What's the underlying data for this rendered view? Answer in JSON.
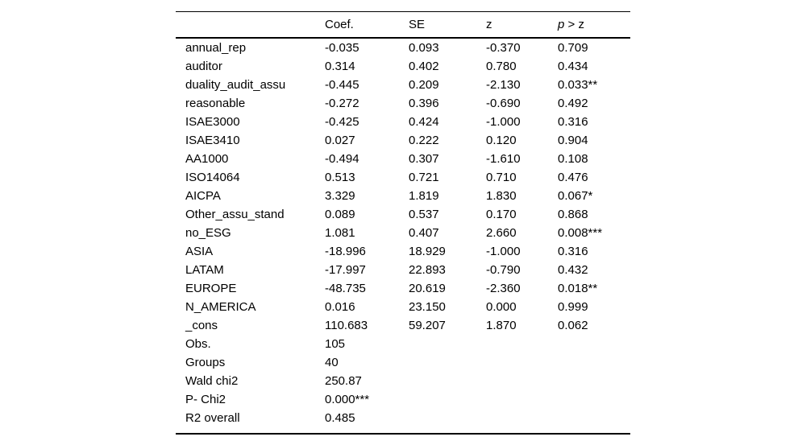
{
  "page": {
    "background_color": "#ffffff",
    "text_color": "#000000",
    "rule_color": "#000000"
  },
  "table": {
    "headers": {
      "variable": "",
      "coef": "Coef.",
      "se": "SE",
      "z": "z",
      "p_symbol": "p",
      "p_comparison": " > z"
    },
    "rows": [
      {
        "label": "annual_rep",
        "coef": "-0.035",
        "se": "0.093",
        "z": "-0.370",
        "p": "0.709"
      },
      {
        "label": "auditor",
        "coef": "0.314",
        "se": "0.402",
        "z": "0.780",
        "p": "0.434"
      },
      {
        "label": "duality_audit_assu",
        "coef": "-0.445",
        "se": "0.209",
        "z": "-2.130",
        "p": "0.033**"
      },
      {
        "label": "reasonable",
        "coef": "-0.272",
        "se": "0.396",
        "z": "-0.690",
        "p": "0.492"
      },
      {
        "label": "ISAE3000",
        "coef": "-0.425",
        "se": "0.424",
        "z": "-1.000",
        "p": "0.316"
      },
      {
        "label": "ISAE3410",
        "coef": "0.027",
        "se": "0.222",
        "z": "0.120",
        "p": "0.904"
      },
      {
        "label": "AA1000",
        "coef": "-0.494",
        "se": "0.307",
        "z": "-1.610",
        "p": "0.108"
      },
      {
        "label": "ISO14064",
        "coef": "0.513",
        "se": "0.721",
        "z": "0.710",
        "p": "0.476"
      },
      {
        "label": "AICPA",
        "coef": "3.329",
        "se": "1.819",
        "z": "1.830",
        "p": "0.067*"
      },
      {
        "label": "Other_assu_stand",
        "coef": "0.089",
        "se": "0.537",
        "z": "0.170",
        "p": "0.868"
      },
      {
        "label": "no_ESG",
        "coef": "1.081",
        "se": "0.407",
        "z": "2.660",
        "p": "0.008***"
      },
      {
        "label": "ASIA",
        "coef": "-18.996",
        "se": "18.929",
        "z": "-1.000",
        "p": "0.316"
      },
      {
        "label": "LATAM",
        "coef": "-17.997",
        "se": "22.893",
        "z": "-0.790",
        "p": "0.432"
      },
      {
        "label": "EUROPE",
        "coef": "-48.735",
        "se": "20.619",
        "z": "-2.360",
        "p": "0.018**"
      },
      {
        "label": "N_AMERICA",
        "coef": "0.016",
        "se": "23.150",
        "z": "0.000",
        "p": "0.999"
      },
      {
        "label": "_cons",
        "coef": "110.683",
        "se": "59.207",
        "z": "1.870",
        "p": "0.062"
      },
      {
        "label": "Obs.",
        "coef": "105",
        "se": "",
        "z": "",
        "p": ""
      },
      {
        "label": "Groups",
        "coef": "40",
        "se": "",
        "z": "",
        "p": ""
      },
      {
        "label": "Wald chi2",
        "coef": "250.87",
        "se": "",
        "z": "",
        "p": ""
      },
      {
        "label": "P- Chi2",
        "coef": "0.000***",
        "se": "",
        "z": "",
        "p": ""
      },
      {
        "label": "R2 overall",
        "coef": "0.485",
        "se": "",
        "z": "",
        "p": ""
      }
    ]
  }
}
